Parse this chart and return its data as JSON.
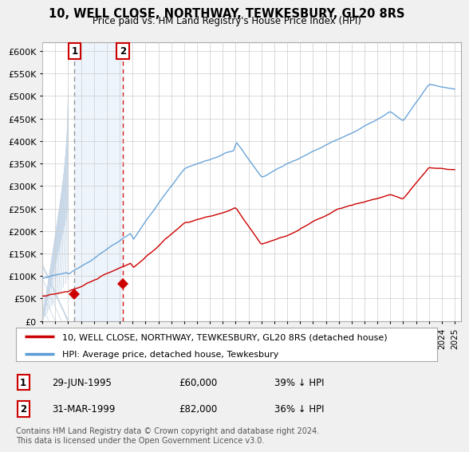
{
  "title": "10, WELL CLOSE, NORTHWAY, TEWKESBURY, GL20 8RS",
  "subtitle": "Price paid vs. HM Land Registry's House Price Index (HPI)",
  "legend_line1": "10, WELL CLOSE, NORTHWAY, TEWKESBURY, GL20 8RS (detached house)",
  "legend_line2": "HPI: Average price, detached house, Tewkesbury",
  "sale1_label": "1",
  "sale1_date": "29-JUN-1995",
  "sale1_price": "£60,000",
  "sale1_hpi": "39% ↓ HPI",
  "sale1_year": 1995.49,
  "sale1_value": 60000,
  "sale2_label": "2",
  "sale2_date": "31-MAR-1999",
  "sale2_price": "£82,000",
  "sale2_hpi": "36% ↓ HPI",
  "sale2_year": 1999.25,
  "sale2_value": 82000,
  "hpi_color": "#5b9bd5",
  "price_color": "#cc0000",
  "ylim": [
    0,
    620000
  ],
  "yticks": [
    0,
    50000,
    100000,
    150000,
    200000,
    250000,
    300000,
    350000,
    400000,
    450000,
    500000,
    550000,
    600000
  ],
  "ytick_labels": [
    "£0",
    "£50K",
    "£100K",
    "£150K",
    "£200K",
    "£250K",
    "£300K",
    "£350K",
    "£400K",
    "£450K",
    "£500K",
    "£550K",
    "£600K"
  ],
  "footer": "Contains HM Land Registry data © Crown copyright and database right 2024.\nThis data is licensed under the Open Government Licence v3.0.",
  "background_color": "#f0f0f0",
  "plot_bg_color": "#ffffff",
  "grid_color": "#cccccc",
  "hatch_color": "#e0e8f0",
  "shade_color": "#ddeeff"
}
